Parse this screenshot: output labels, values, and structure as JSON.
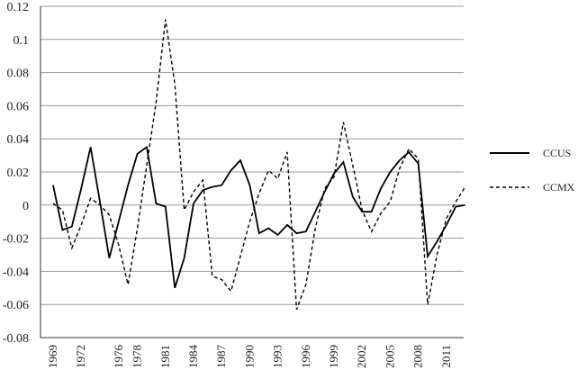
{
  "chart_data": {
    "type": "line",
    "x": [
      1969,
      1970,
      1971,
      1972,
      1973,
      1974,
      1975,
      1976,
      1977,
      1978,
      1979,
      1980,
      1981,
      1982,
      1983,
      1984,
      1985,
      1986,
      1987,
      1988,
      1989,
      1990,
      1991,
      1992,
      1993,
      1994,
      1995,
      1996,
      1997,
      1998,
      1999,
      2000,
      2001,
      2002,
      2003,
      2004,
      2005,
      2006,
      2007,
      2008,
      2009,
      2010,
      2011,
      2012,
      2013
    ],
    "x_tick_labels": [
      "1969",
      "1972",
      "1976",
      "1978",
      "1981",
      "1984",
      "1987",
      "1990",
      "1993",
      "1996",
      "1999",
      "2002",
      "2005",
      "2008",
      "2011"
    ],
    "y_tick_labels": [
      "0.12",
      "0.1",
      "0.08",
      "0.06",
      "0.04",
      "0.02",
      "0",
      "-0.02",
      "-0.04",
      "-0.06",
      "-0.08"
    ],
    "ylim": [
      -0.08,
      0.12
    ],
    "grid": true,
    "legend_position": "right",
    "series": [
      {
        "name": "CCUS",
        "style": "solid",
        "color": "#000000",
        "values": [
          0.012,
          -0.015,
          -0.013,
          0.01,
          0.035,
          0.002,
          -0.032,
          -0.01,
          0.012,
          0.031,
          0.035,
          0.001,
          -0.001,
          -0.05,
          -0.032,
          0.001,
          0.009,
          0.011,
          0.012,
          0.021,
          0.027,
          0.012,
          -0.017,
          -0.014,
          -0.018,
          -0.012,
          -0.017,
          -0.016,
          -0.004,
          0.008,
          0.019,
          0.026,
          0.005,
          -0.004,
          -0.004,
          0.01,
          0.02,
          0.027,
          0.032,
          0.025,
          -0.031,
          -0.022,
          -0.012,
          -0.001,
          0.0
        ]
      },
      {
        "name": "CCMX",
        "style": "dashed",
        "color": "#000000",
        "values": [
          0.001,
          -0.003,
          -0.026,
          -0.012,
          0.004,
          0.0,
          -0.006,
          -0.024,
          -0.048,
          -0.014,
          0.024,
          0.062,
          0.112,
          0.073,
          -0.003,
          0.008,
          0.015,
          -0.043,
          -0.045,
          -0.052,
          -0.031,
          -0.01,
          0.007,
          0.021,
          0.016,
          0.032,
          -0.063,
          -0.048,
          -0.014,
          0.01,
          0.017,
          0.05,
          0.024,
          -0.003,
          -0.016,
          -0.005,
          0.002,
          0.022,
          0.034,
          0.028,
          -0.06,
          -0.03,
          -0.008,
          0.002,
          0.011
        ]
      }
    ]
  }
}
